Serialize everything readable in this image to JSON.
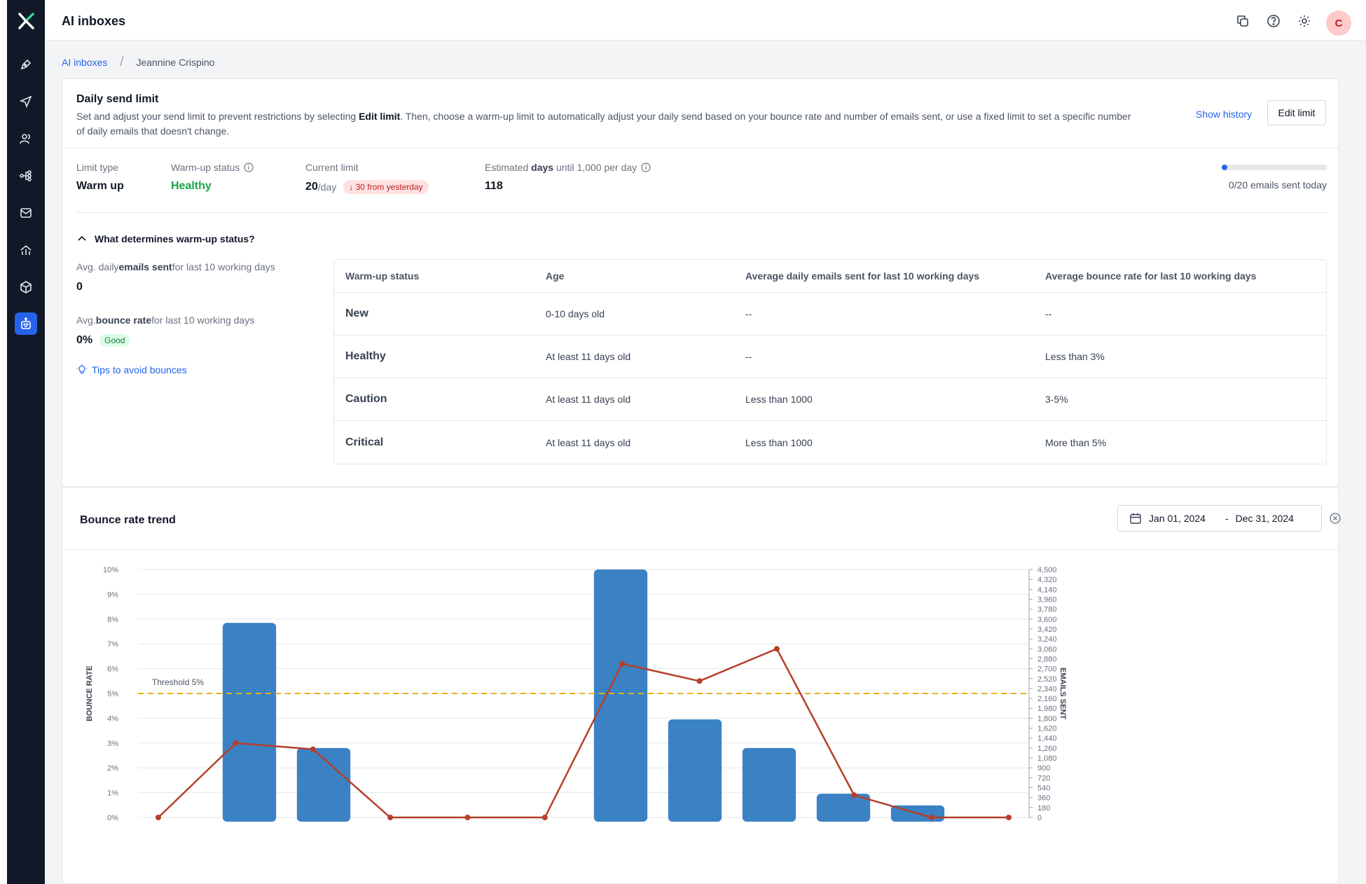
{
  "app": {
    "title": "AI inboxes",
    "avatar_initial": "C"
  },
  "sidebar": {
    "items": [
      {
        "name": "pen-icon"
      },
      {
        "name": "send-icon"
      },
      {
        "name": "users-icon"
      },
      {
        "name": "flow-icon"
      },
      {
        "name": "mail-icon"
      },
      {
        "name": "analytics-icon"
      },
      {
        "name": "package-icon"
      },
      {
        "name": "bot-icon",
        "active": true
      }
    ],
    "accent": "#2563eb",
    "background": "#111827"
  },
  "topbar": {
    "icons": [
      "copy-icon",
      "help-icon",
      "settings-icon"
    ]
  },
  "breadcrumb": {
    "root": "AI inboxes",
    "separator": "/",
    "current": "Jeannine Crispino"
  },
  "send_limit": {
    "title": "Daily send limit",
    "desc_1": "Set and adjust your send limit to prevent restrictions by selecting ",
    "desc_bold": "Edit limit",
    "desc_2": ". Then, choose a warm-up limit to automatically adjust your daily send based on your bounce rate and number of emails sent, or use a fixed limit to set a specific number of daily emails that doesn't change.",
    "show_history": "Show history",
    "edit_limit": "Edit limit",
    "limit_type_label": "Limit type",
    "limit_type_value": "Warm up",
    "warmup_status_label": "Warm-up status",
    "warmup_status_value": "Healthy",
    "current_limit_label": "Current limit",
    "current_limit_value": "20",
    "current_limit_unit": "/day",
    "current_limit_change": "↓ 30 from yesterday",
    "estimated_label_1": "Estimated ",
    "estimated_label_bold": "days",
    "estimated_label_2": " until 1,000 per day",
    "estimated_value": "118",
    "progress_fraction": 0.0,
    "progress_text": "0/20 emails sent today"
  },
  "warmup": {
    "toggle_label": "What determines warm-up status?",
    "avg_emails_label_1": "Avg. daily ",
    "avg_emails_label_bold": "emails sent",
    "avg_emails_label_2": " for last 10 working days",
    "avg_emails_value": "0",
    "avg_bounce_label_1": "Avg. ",
    "avg_bounce_label_bold": "bounce rate",
    "avg_bounce_label_2": " for last 10 working days",
    "avg_bounce_value": "0%",
    "avg_bounce_badge": "Good",
    "tips_link": "Tips to avoid bounces",
    "table": {
      "headers": [
        "Warm-up status",
        "Age",
        "Average daily emails sent for last 10 working days",
        "Average bounce rate for last 10 working days"
      ],
      "rows": [
        {
          "status": "New",
          "color": "#111827",
          "age": "0-10 days old",
          "emails": "--",
          "bounce": "--"
        },
        {
          "status": "Healthy",
          "color": "#16a34a",
          "age": "At least 11 days old",
          "emails": "--",
          "bounce": "Less than 3%"
        },
        {
          "status": "Caution",
          "color": "#ca8a04",
          "age": "At least 11 days old",
          "emails": "Less than 1000",
          "bounce": "3-5%"
        },
        {
          "status": "Critical",
          "color": "#dc2626",
          "age": "At least 11 days old",
          "emails": "Less than 1000",
          "bounce": "More than 5%"
        }
      ]
    }
  },
  "bounce_trend": {
    "title": "Bounce rate trend",
    "date_start": "Jan 01, 2024",
    "date_sep": "-",
    "date_end": "Dec 31, 2024"
  },
  "chart_data": {
    "type": "bar",
    "title": "",
    "ylabel": "BOUNCE RATE",
    "y2label": "EMAILS SENT",
    "ylim": [
      0,
      10
    ],
    "y2lim": [
      0,
      4500
    ],
    "y_ticks": [
      "0%",
      "1%",
      "2%",
      "3%",
      "4%",
      "5%",
      "6%",
      "7%",
      "8%",
      "9%",
      "10%"
    ],
    "y2_ticks": [
      "0",
      "180",
      "360",
      "540",
      "720",
      "900",
      "1,080",
      "1,260",
      "1,440",
      "1,620",
      "1,800",
      "1,980",
      "2,160",
      "2,340",
      "2,520",
      "2,700",
      "2,880",
      "3,060",
      "3,240",
      "3,420",
      "3,600",
      "3,780",
      "3,960",
      "4,140",
      "4,320",
      "4,500"
    ],
    "threshold": {
      "value": 5,
      "label": "Threshold 5%",
      "color": "#eab308"
    },
    "categories_count": 12,
    "series": [
      {
        "type": "bar",
        "axis": "right",
        "color": "#3b82c4",
        "values": [
          0,
          3530,
          1260,
          0,
          0,
          0,
          4500,
          1780,
          1260,
          430,
          220,
          0
        ]
      },
      {
        "type": "line",
        "axis": "left",
        "color": "#b5402a",
        "values": [
          0,
          3.0,
          2.75,
          0,
          0,
          0,
          6.2,
          5.5,
          6.8,
          0.9,
          0,
          0
        ]
      }
    ],
    "grid": true
  }
}
